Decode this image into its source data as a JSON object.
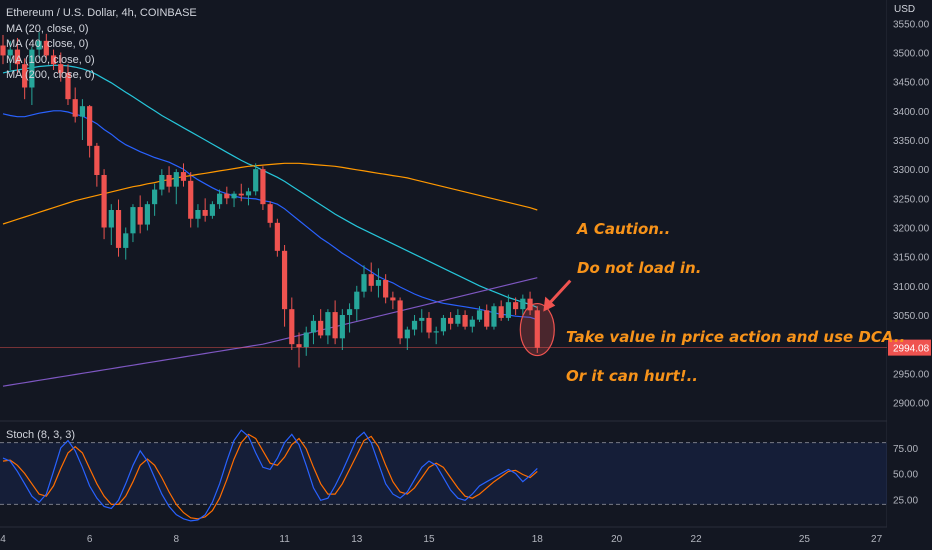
{
  "symbol_title": "Ethereum / U.S. Dollar, 4h, COINBASE",
  "currency": "USD",
  "indicators": [
    "MA (20, close, 0)",
    "MA (40, close, 0)",
    "MA (100, close, 0)",
    "MA (200, close, 0)"
  ],
  "stoch_label": "Stoch (8, 3, 3)",
  "annotations": {
    "line1": "A Caution..",
    "line2": "Do not load in.",
    "line3": "Take value in price action and use DCA..",
    "line4": "Or it can hurt!.."
  },
  "colors": {
    "background": "#131722",
    "up": "#26a69a",
    "down": "#ef5350",
    "ma20": "#2962ff",
    "ma40": "#26c6da",
    "ma100": "#ff9800",
    "ma200": "#7e57c2",
    "stoch_k": "#2962ff",
    "stoch_d": "#ff6d00",
    "annotation": "#f7931a",
    "price_tag": "#ef5350"
  },
  "chart_data": {
    "type": "candlestick",
    "price_axis": {
      "ticks": [
        2900,
        2950,
        3000,
        3050,
        3100,
        3150,
        3200,
        3250,
        3300,
        3350,
        3400,
        3450,
        3500,
        3550
      ],
      "tick_labels": [
        "2900.00",
        "2950.00",
        "3000.00",
        "3050.00",
        "3100.00",
        "3150.00",
        "3200.00",
        "3250.00",
        "3300.00",
        "3350.00",
        "3400.00",
        "3450.00",
        "3500.00",
        "3550.00"
      ],
      "range": [
        2870,
        3590
      ]
    },
    "last_price": 2994.08,
    "last_price_label": "2994.08",
    "x_axis": {
      "labels": [
        "4",
        "6",
        "8",
        "11",
        "13",
        "15",
        "18",
        "20",
        "22",
        "25",
        "27"
      ],
      "label_bar_index": [
        0,
        12,
        24,
        39,
        49,
        59,
        74,
        85,
        96,
        111,
        121
      ]
    },
    "candles": [
      [
        3512,
        3530,
        3480,
        3495
      ],
      [
        3495,
        3520,
        3470,
        3505
      ],
      [
        3505,
        3525,
        3465,
        3480
      ],
      [
        3480,
        3490,
        3420,
        3440
      ],
      [
        3440,
        3510,
        3410,
        3505
      ],
      [
        3505,
        3535,
        3490,
        3520
      ],
      [
        3520,
        3532,
        3488,
        3495
      ],
      [
        3495,
        3505,
        3470,
        3480
      ],
      [
        3480,
        3500,
        3450,
        3465
      ],
      [
        3465,
        3480,
        3410,
        3420
      ],
      [
        3420,
        3440,
        3380,
        3390
      ],
      [
        3390,
        3420,
        3350,
        3408
      ],
      [
        3408,
        3410,
        3320,
        3340
      ],
      [
        3340,
        3345,
        3270,
        3290
      ],
      [
        3290,
        3300,
        3180,
        3200
      ],
      [
        3200,
        3240,
        3170,
        3230
      ],
      [
        3230,
        3248,
        3150,
        3165
      ],
      [
        3165,
        3200,
        3145,
        3190
      ],
      [
        3190,
        3240,
        3175,
        3235
      ],
      [
        3235,
        3255,
        3190,
        3205
      ],
      [
        3205,
        3245,
        3195,
        3240
      ],
      [
        3240,
        3275,
        3220,
        3265
      ],
      [
        3265,
        3300,
        3255,
        3290
      ],
      [
        3290,
        3305,
        3260,
        3270
      ],
      [
        3270,
        3300,
        3240,
        3295
      ],
      [
        3295,
        3310,
        3270,
        3280
      ],
      [
        3280,
        3295,
        3200,
        3215
      ],
      [
        3215,
        3240,
        3200,
        3230
      ],
      [
        3230,
        3250,
        3210,
        3220
      ],
      [
        3220,
        3245,
        3215,
        3240
      ],
      [
        3240,
        3265,
        3232,
        3258
      ],
      [
        3258,
        3270,
        3240,
        3250
      ],
      [
        3250,
        3262,
        3235,
        3258
      ],
      [
        3258,
        3275,
        3245,
        3255
      ],
      [
        3255,
        3268,
        3238,
        3262
      ],
      [
        3262,
        3310,
        3255,
        3300
      ],
      [
        3300,
        3305,
        3230,
        3240
      ],
      [
        3240,
        3245,
        3200,
        3208
      ],
      [
        3208,
        3215,
        3150,
        3160
      ],
      [
        3160,
        3170,
        3030,
        3060
      ],
      [
        3060,
        3080,
        2990,
        3000
      ],
      [
        3000,
        3020,
        2960,
        2995
      ],
      [
        2995,
        3030,
        2980,
        3020
      ],
      [
        3020,
        3050,
        3000,
        3040
      ],
      [
        3040,
        3060,
        3010,
        3015
      ],
      [
        3015,
        3060,
        3000,
        3055
      ],
      [
        3055,
        3075,
        3000,
        3010
      ],
      [
        3010,
        3060,
        2990,
        3050
      ],
      [
        3050,
        3070,
        3020,
        3060
      ],
      [
        3060,
        3100,
        3040,
        3090
      ],
      [
        3090,
        3135,
        3080,
        3120
      ],
      [
        3120,
        3140,
        3090,
        3100
      ],
      [
        3100,
        3130,
        3080,
        3110
      ],
      [
        3110,
        3120,
        3070,
        3080
      ],
      [
        3080,
        3090,
        3060,
        3075
      ],
      [
        3075,
        3080,
        3000,
        3010
      ],
      [
        3010,
        3030,
        2990,
        3025
      ],
      [
        3025,
        3050,
        3015,
        3040
      ],
      [
        3040,
        3060,
        3020,
        3045
      ],
      [
        3045,
        3055,
        3010,
        3020
      ],
      [
        3020,
        3030,
        3000,
        3022
      ],
      [
        3022,
        3050,
        3015,
        3045
      ],
      [
        3045,
        3055,
        3025,
        3035
      ],
      [
        3035,
        3060,
        3030,
        3050
      ],
      [
        3050,
        3058,
        3025,
        3030
      ],
      [
        3030,
        3048,
        3020,
        3042
      ],
      [
        3042,
        3065,
        3038,
        3058
      ],
      [
        3058,
        3068,
        3025,
        3030
      ],
      [
        3030,
        3070,
        3025,
        3065
      ],
      [
        3065,
        3075,
        3040,
        3045
      ],
      [
        3045,
        3085,
        3040,
        3072
      ],
      [
        3072,
        3080,
        3050,
        3060
      ],
      [
        3060,
        3085,
        3050,
        3078
      ],
      [
        3078,
        3090,
        3050,
        3058
      ],
      [
        3058,
        3065,
        2985,
        2994
      ]
    ],
    "moving_averages": {
      "MA (20, close, 0)": [
        3395,
        3392,
        3390,
        3390,
        3393,
        3396,
        3398,
        3400,
        3400,
        3398,
        3394,
        3391,
        3385,
        3378,
        3368,
        3360,
        3350,
        3342,
        3336,
        3330,
        3325,
        3320,
        3316,
        3312,
        3306,
        3300,
        3290,
        3282,
        3275,
        3268,
        3262,
        3258,
        3254,
        3251,
        3250,
        3249,
        3246,
        3244,
        3240,
        3232,
        3222,
        3212,
        3202,
        3192,
        3182,
        3174,
        3165,
        3156,
        3148,
        3140,
        3132,
        3124,
        3116,
        3110,
        3105,
        3098,
        3092,
        3086,
        3081,
        3077,
        3073,
        3070,
        3068,
        3066,
        3064,
        3062,
        3060,
        3057,
        3054,
        3051,
        3050,
        3048,
        3047,
        3046,
        3042
      ],
      "MA (40, close, 0)": [
        3465,
        3468,
        3470,
        3472,
        3474,
        3476,
        3477,
        3478,
        3478,
        3477,
        3475,
        3472,
        3468,
        3462,
        3455,
        3448,
        3440,
        3432,
        3424,
        3416,
        3408,
        3400,
        3392,
        3385,
        3378,
        3371,
        3364,
        3357,
        3350,
        3343,
        3336,
        3329,
        3322,
        3315,
        3309,
        3304,
        3298,
        3292,
        3286,
        3279,
        3271,
        3263,
        3255,
        3247,
        3239,
        3231,
        3223,
        3216,
        3209,
        3202,
        3196,
        3190,
        3184,
        3178,
        3172,
        3166,
        3160,
        3154,
        3148,
        3142,
        3136,
        3130,
        3124,
        3118,
        3112,
        3106,
        3100,
        3095,
        3090,
        3085,
        3080,
        3076,
        3072,
        3068,
        3063
      ],
      "MA (100, close, 0)": [
        3206,
        3210,
        3214,
        3218,
        3222,
        3226,
        3230,
        3234,
        3238,
        3242,
        3246,
        3249,
        3252,
        3255,
        3258,
        3261,
        3264,
        3267,
        3270,
        3272,
        3275,
        3277,
        3280,
        3282,
        3285,
        3287,
        3289,
        3291,
        3293,
        3295,
        3297,
        3299,
        3301,
        3303,
        3305,
        3306,
        3307,
        3308,
        3309,
        3310,
        3310,
        3310,
        3309,
        3308,
        3307,
        3306,
        3305,
        3303,
        3301,
        3299,
        3297,
        3295,
        3293,
        3291,
        3289,
        3287,
        3285,
        3282,
        3279,
        3276,
        3273,
        3270,
        3267,
        3264,
        3261,
        3258,
        3255,
        3252,
        3249,
        3246,
        3243,
        3240,
        3237,
        3234,
        3230
      ],
      "MA (200, close, 0)": [
        2928,
        2930,
        2932,
        2934,
        2936,
        2938,
        2940,
        2942,
        2944,
        2946,
        2948,
        2950,
        2952,
        2954,
        2956,
        2958,
        2960,
        2962,
        2964,
        2966,
        2968,
        2970,
        2972,
        2974,
        2976,
        2978,
        2980,
        2982,
        2984,
        2986,
        2988,
        2990,
        2992,
        2994,
        2996,
        2998,
        3000,
        3003,
        3006,
        3009,
        3012,
        3015,
        3018,
        3021,
        3024,
        3027,
        3030,
        3033,
        3036,
        3039,
        3042,
        3045,
        3048,
        3051,
        3054,
        3057,
        3060,
        3063,
        3066,
        3069,
        3072,
        3075,
        3078,
        3081,
        3084,
        3087,
        3090,
        3093,
        3096,
        3099,
        3102,
        3105,
        3108,
        3111,
        3114
      ]
    },
    "stoch_axis": {
      "ticks": [
        25,
        50,
        75
      ],
      "tick_labels": [
        "25.00",
        "50.00",
        "75.00"
      ],
      "range": [
        0,
        100
      ],
      "band": [
        20,
        80
      ]
    },
    "stoch_k": [
      65,
      62,
      52,
      40,
      28,
      22,
      30,
      52,
      75,
      82,
      72,
      56,
      38,
      26,
      18,
      16,
      24,
      40,
      58,
      72,
      62,
      46,
      30,
      18,
      10,
      6,
      4,
      5,
      10,
      22,
      40,
      62,
      82,
      92,
      86,
      70,
      56,
      54,
      65,
      80,
      88,
      78,
      58,
      36,
      24,
      26,
      38,
      52,
      68,
      84,
      90,
      80,
      60,
      40,
      30,
      26,
      32,
      44,
      56,
      62,
      58,
      46,
      34,
      26,
      24,
      30,
      38,
      42,
      46,
      50,
      54,
      50,
      42,
      48,
      55
    ],
    "stoch_d": [
      62,
      63,
      58,
      50,
      40,
      30,
      28,
      38,
      55,
      70,
      76,
      70,
      55,
      40,
      28,
      20,
      20,
      28,
      42,
      58,
      64,
      58,
      46,
      32,
      20,
      12,
      7,
      6,
      8,
      14,
      26,
      44,
      64,
      80,
      88,
      84,
      72,
      60,
      58,
      66,
      78,
      84,
      74,
      56,
      40,
      30,
      30,
      40,
      54,
      68,
      82,
      86,
      76,
      58,
      42,
      32,
      30,
      36,
      46,
      56,
      60,
      56,
      46,
      36,
      28,
      26,
      30,
      36,
      42,
      47,
      52,
      53,
      49,
      46,
      52
    ]
  }
}
